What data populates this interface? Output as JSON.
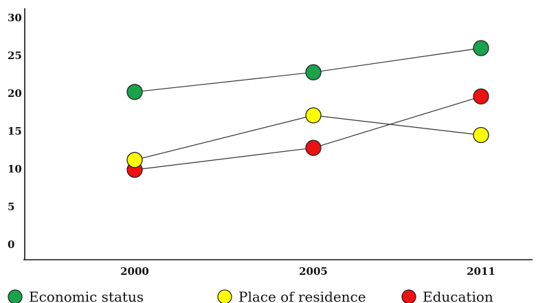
{
  "chart_data": {
    "type": "line",
    "categories": [
      "2000",
      "2005",
      "2011"
    ],
    "yticks": [
      "0",
      "5",
      "10",
      "15",
      "20",
      "25",
      "30"
    ],
    "ylim": [
      0,
      30
    ],
    "title": "",
    "xlabel": "",
    "ylabel": "",
    "grid": false,
    "legend_position": "bottom",
    "series": [
      {
        "name": "Economic status",
        "color": "#1aa34a",
        "values": [
          20.2,
          22.8,
          26.0
        ]
      },
      {
        "name": "Place of residence",
        "color": "#ffff00",
        "values": [
          11.2,
          17.1,
          14.5
        ]
      },
      {
        "name": "Education",
        "color": "#ee1111",
        "values": [
          9.9,
          12.8,
          19.6
        ]
      }
    ]
  }
}
